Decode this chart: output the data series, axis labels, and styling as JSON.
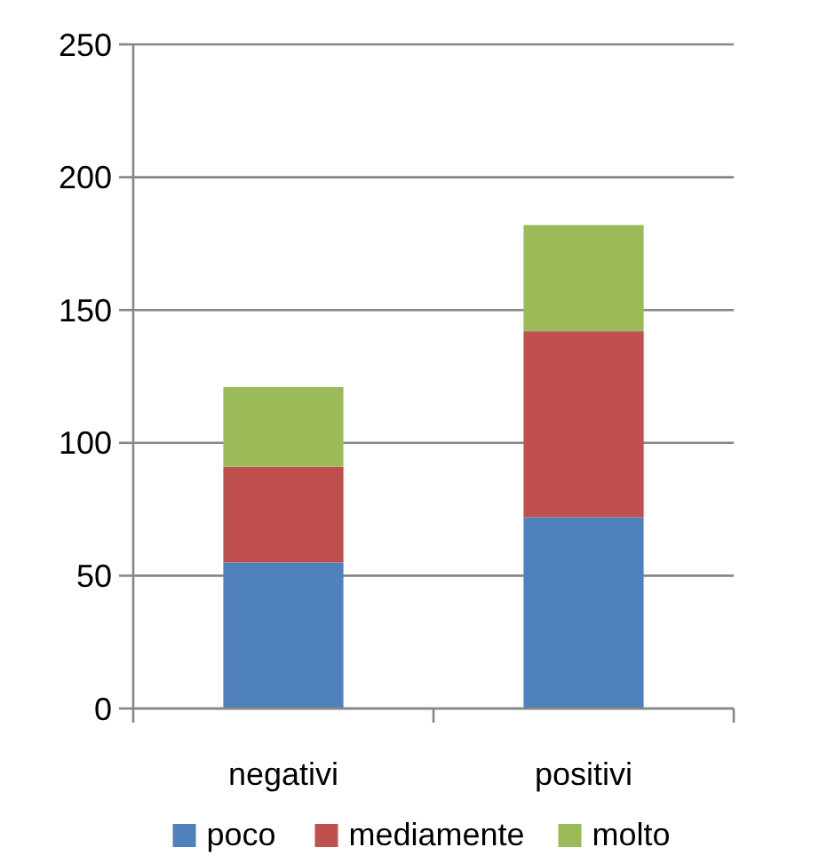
{
  "chart_data": {
    "type": "bar",
    "stacked": true,
    "categories": [
      "negativi",
      "positivi"
    ],
    "series": [
      {
        "name": "poco",
        "color": "#4f81bd",
        "values": [
          55,
          72
        ]
      },
      {
        "name": "mediamente",
        "color": "#c0504d",
        "values": [
          36,
          70
        ]
      },
      {
        "name": "molto",
        "color": "#9bbb59",
        "values": [
          30,
          40
        ]
      }
    ],
    "ylim": [
      0,
      250
    ],
    "yticks": [
      0,
      50,
      100,
      150,
      200,
      250
    ],
    "grid": "y",
    "legend": "bottom"
  }
}
